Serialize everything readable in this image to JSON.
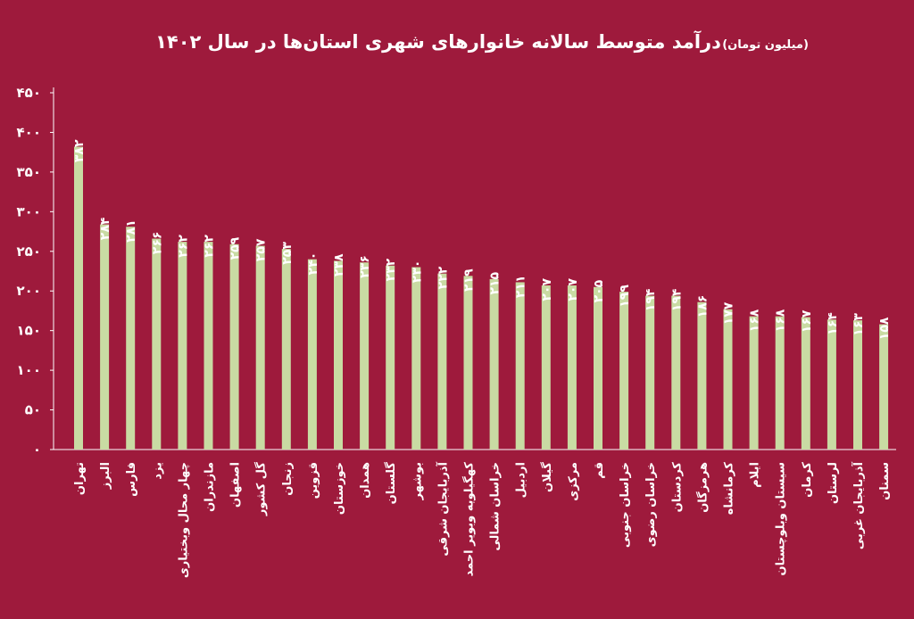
{
  "colors": {
    "background": "#9e1a3c",
    "bar": "#c9dba3",
    "text": "#ffffff",
    "axis": "#ffffff"
  },
  "chart_data": {
    "type": "bar",
    "title": "درآمد متوسط سالانه خانوارهای شهری استان‌ها در سال ۱۴۰۲",
    "unit": "(میلیون تومان)",
    "xlabel": "",
    "ylabel": "",
    "ylim": [
      0,
      450
    ],
    "yticks": [
      0,
      50,
      100,
      150,
      200,
      250,
      300,
      350,
      400,
      450
    ],
    "ytick_labels": [
      "۰",
      "۵۰",
      "۱۰۰",
      "۱۵۰",
      "۲۰۰",
      "۲۵۰",
      "۳۰۰",
      "۳۵۰",
      "۴۰۰",
      "۴۵۰"
    ],
    "grid": false,
    "categories": [
      "تهران",
      "البرز",
      "فارس",
      "یزد",
      "چهار محال وبختیاری",
      "مازندران",
      "اصفهان",
      "گل کشور",
      "زنجان",
      "قزوین",
      "خوزستان",
      "همدان",
      "گلستان",
      "بوشهر",
      "آذربایجان شرقی",
      "کهگیلویه وبویر احمد",
      "خراسان شمالی",
      "اردبیل",
      "گیلان",
      "مرکزی",
      "قم",
      "خراسان جنوبی",
      "خراسان رضوی",
      "کردستان",
      "هرمزگان",
      "کرمانشاه",
      "ایلام",
      "سیستان وبلوچستان",
      "کرمان",
      "لرستان",
      "آذربایجان غربی",
      "سمنان"
    ],
    "values": [
      382,
      284,
      281,
      266,
      262,
      262,
      259,
      257,
      253,
      240,
      238,
      236,
      232,
      230,
      222,
      219,
      215,
      211,
      207,
      207,
      205,
      199,
      194,
      194,
      186,
      177,
      168,
      168,
      167,
      164,
      163,
      158
    ],
    "value_labels": [
      "۳۸۲",
      "۲۸۴",
      "۲۸۱",
      "۲۶۶",
      "۲۶۲",
      "۲۶۲",
      "۲۵۹",
      "۲۵۷",
      "۲۵۳",
      "۲۴۰",
      "۲۳۸",
      "۲۳۶",
      "۲۳۲",
      "۲۳۰",
      "۲۲۲",
      "۲۱۹",
      "۲۱۵",
      "۲۱۱",
      "۲۰۷",
      "۲۰۷",
      "۲۰۵",
      "۱۹۹",
      "۱۹۴",
      "۱۹۴",
      "۱۸۶",
      "۱۷۷",
      "۱۶۸",
      "۱۶۸",
      "۱۶۷",
      "۱۶۴",
      "۱۶۳",
      "۱۵۸"
    ]
  }
}
